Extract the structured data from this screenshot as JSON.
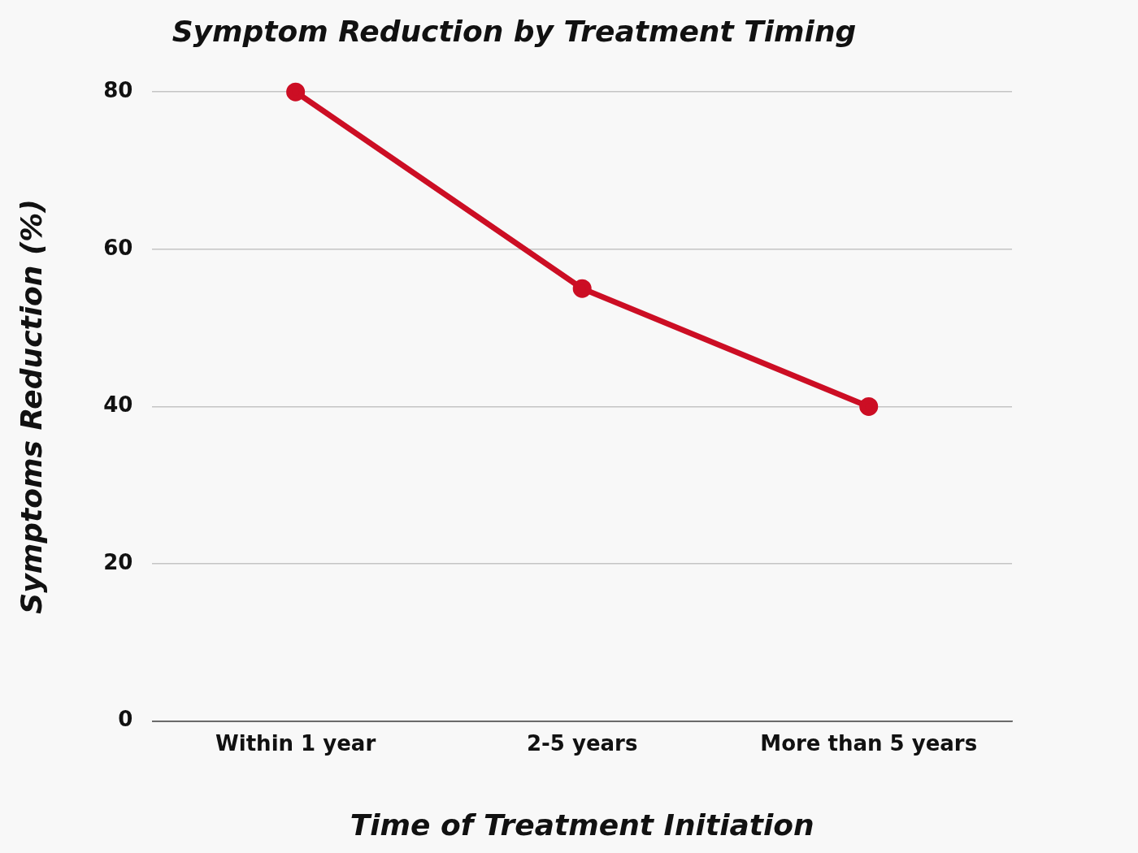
{
  "chart_data": {
    "type": "line",
    "title": "Symptom Reduction by Treatment Timing",
    "x_label": "Time of Treatment Initiation",
    "y_label": "Symptoms Reduction (%)",
    "categories": [
      "Within 1 year",
      "2-5 years",
      "More than 5 years"
    ],
    "values": [
      80,
      55,
      40
    ],
    "color": "#cc0e24",
    "marker": "circle",
    "line_style": "solid",
    "ylim": [
      0,
      80
    ],
    "yticks": [
      0,
      20,
      40,
      60,
      80
    ],
    "grid": true
  }
}
